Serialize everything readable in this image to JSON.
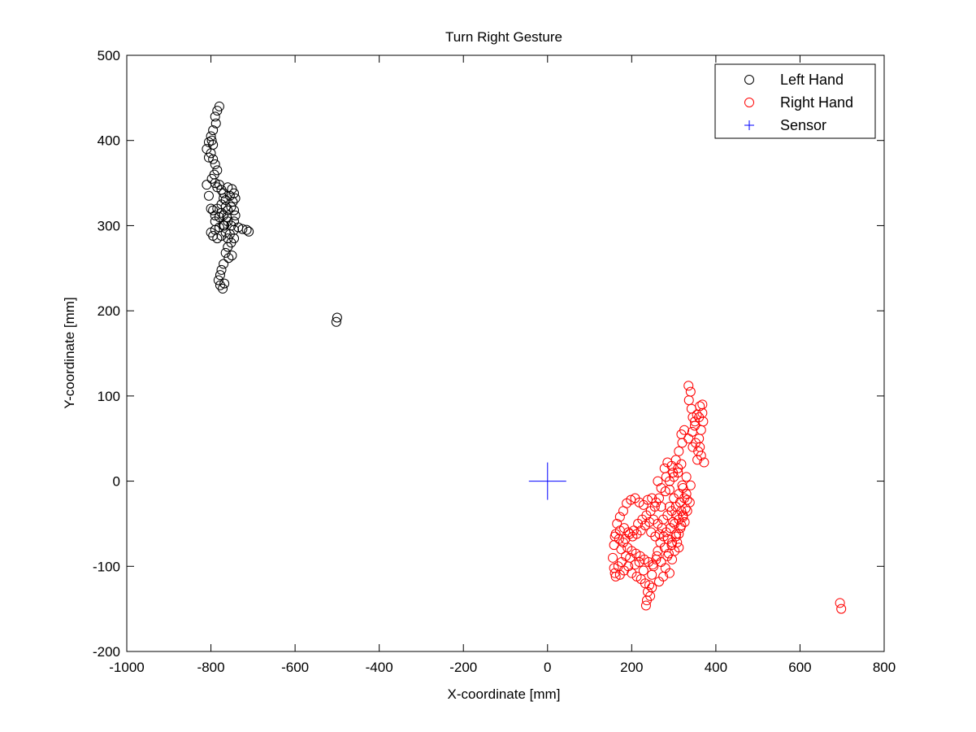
{
  "chart_data": {
    "type": "scatter",
    "title": "Turn Right Gesture",
    "xlabel": "X-coordinate [mm]",
    "ylabel": "Y-coordinate [mm]",
    "xlim": [
      -1000,
      800
    ],
    "ylim": [
      -200,
      500
    ],
    "xticks": [
      -1000,
      -800,
      -600,
      -400,
      -200,
      0,
      200,
      400,
      600,
      800
    ],
    "yticks": [
      -200,
      -100,
      0,
      100,
      200,
      300,
      400,
      500
    ],
    "grid": false,
    "legend_position": "top-right",
    "series": [
      {
        "name": "Left Hand",
        "marker": "circle",
        "color": "#000000",
        "points": [
          [
            -780,
            440
          ],
          [
            -785,
            435
          ],
          [
            -790,
            428
          ],
          [
            -788,
            420
          ],
          [
            -795,
            412
          ],
          [
            -800,
            405
          ],
          [
            -805,
            398
          ],
          [
            -810,
            390
          ],
          [
            -800,
            385
          ],
          [
            -795,
            378
          ],
          [
            -790,
            372
          ],
          [
            -785,
            365
          ],
          [
            -792,
            360
          ],
          [
            -798,
            355
          ],
          [
            -790,
            350
          ],
          [
            -785,
            345
          ],
          [
            -780,
            348
          ],
          [
            -775,
            342
          ],
          [
            -770,
            338
          ],
          [
            -760,
            345
          ],
          [
            -750,
            343
          ],
          [
            -745,
            338
          ],
          [
            -742,
            332
          ],
          [
            -748,
            328
          ],
          [
            -755,
            335
          ],
          [
            -765,
            330
          ],
          [
            -775,
            325
          ],
          [
            -785,
            320
          ],
          [
            -795,
            318
          ],
          [
            -790,
            312
          ],
          [
            -780,
            310
          ],
          [
            -770,
            312
          ],
          [
            -760,
            318
          ],
          [
            -752,
            322
          ],
          [
            -745,
            318
          ],
          [
            -742,
            312
          ],
          [
            -745,
            305
          ],
          [
            -752,
            300
          ],
          [
            -760,
            305
          ],
          [
            -770,
            300
          ],
          [
            -780,
            298
          ],
          [
            -790,
            295
          ],
          [
            -800,
            292
          ],
          [
            -795,
            288
          ],
          [
            -785,
            285
          ],
          [
            -775,
            288
          ],
          [
            -765,
            292
          ],
          [
            -755,
            290
          ],
          [
            -745,
            295
          ],
          [
            -735,
            298
          ],
          [
            -725,
            296
          ],
          [
            -715,
            295
          ],
          [
            -710,
            293
          ],
          [
            -745,
            285
          ],
          [
            -752,
            280
          ],
          [
            -760,
            275
          ],
          [
            -765,
            268
          ],
          [
            -758,
            262
          ],
          [
            -750,
            265
          ],
          [
            -770,
            255
          ],
          [
            -775,
            248
          ],
          [
            -778,
            242
          ],
          [
            -782,
            236
          ],
          [
            -778,
            230
          ],
          [
            -772,
            226
          ],
          [
            -768,
            232
          ],
          [
            -790,
            305
          ],
          [
            -800,
            320
          ],
          [
            -805,
            335
          ],
          [
            -810,
            348
          ],
          [
            -770,
            332
          ],
          [
            -765,
            322
          ],
          [
            -762,
            310
          ],
          [
            -775,
            315
          ],
          [
            -768,
            300
          ],
          [
            -760,
            285
          ],
          [
            -798,
            400
          ],
          [
            -805,
            380
          ],
          [
            -795,
            395
          ],
          [
            -500,
            192
          ],
          [
            -502,
            187
          ]
        ]
      },
      {
        "name": "Right Hand",
        "marker": "circle",
        "color": "#ff0000",
        "points": [
          [
            335,
            112
          ],
          [
            340,
            105
          ],
          [
            336,
            95
          ],
          [
            342,
            85
          ],
          [
            345,
            75
          ],
          [
            350,
            65
          ],
          [
            355,
            78
          ],
          [
            362,
            88
          ],
          [
            368,
            80
          ],
          [
            370,
            70
          ],
          [
            365,
            60
          ],
          [
            360,
            50
          ],
          [
            362,
            40
          ],
          [
            365,
            30
          ],
          [
            372,
            22
          ],
          [
            358,
            35
          ],
          [
            345,
            40
          ],
          [
            335,
            50
          ],
          [
            325,
            60
          ],
          [
            318,
            55
          ],
          [
            320,
            45
          ],
          [
            312,
            35
          ],
          [
            305,
            25
          ],
          [
            295,
            18
          ],
          [
            285,
            22
          ],
          [
            278,
            15
          ],
          [
            282,
            5
          ],
          [
            290,
            0
          ],
          [
            300,
            5
          ],
          [
            310,
            10
          ],
          [
            320,
            -5
          ],
          [
            330,
            -15
          ],
          [
            338,
            -25
          ],
          [
            332,
            -35
          ],
          [
            322,
            -40
          ],
          [
            312,
            -45
          ],
          [
            302,
            -50
          ],
          [
            292,
            -55
          ],
          [
            282,
            -60
          ],
          [
            272,
            -55
          ],
          [
            262,
            -50
          ],
          [
            252,
            -45
          ],
          [
            242,
            -48
          ],
          [
            232,
            -52
          ],
          [
            222,
            -58
          ],
          [
            212,
            -62
          ],
          [
            202,
            -65
          ],
          [
            192,
            -60
          ],
          [
            182,
            -55
          ],
          [
            172,
            -58
          ],
          [
            162,
            -62
          ],
          [
            158,
            -75
          ],
          [
            155,
            -90
          ],
          [
            158,
            -102
          ],
          [
            162,
            -112
          ],
          [
            172,
            -110
          ],
          [
            182,
            -105
          ],
          [
            192,
            -100
          ],
          [
            200,
            -108
          ],
          [
            212,
            -112
          ],
          [
            222,
            -115
          ],
          [
            232,
            -120
          ],
          [
            238,
            -130
          ],
          [
            236,
            -140
          ],
          [
            234,
            -146
          ],
          [
            242,
            -122
          ],
          [
            248,
            -110
          ],
          [
            252,
            -100
          ],
          [
            258,
            -92
          ],
          [
            262,
            -82
          ],
          [
            268,
            -72
          ],
          [
            278,
            -78
          ],
          [
            288,
            -85
          ],
          [
            296,
            -92
          ],
          [
            302,
            -82
          ],
          [
            308,
            -72
          ],
          [
            312,
            -62
          ],
          [
            318,
            -52
          ],
          [
            322,
            -42
          ],
          [
            328,
            -32
          ],
          [
            332,
            -22
          ],
          [
            325,
            -20
          ],
          [
            315,
            -25
          ],
          [
            305,
            -30
          ],
          [
            295,
            -35
          ],
          [
            285,
            -40
          ],
          [
            275,
            -45
          ],
          [
            270,
            -30
          ],
          [
            265,
            -20
          ],
          [
            258,
            -25
          ],
          [
            248,
            -20
          ],
          [
            238,
            -22
          ],
          [
            228,
            -28
          ],
          [
            218,
            -25
          ],
          [
            208,
            -20
          ],
          [
            198,
            -22
          ],
          [
            188,
            -26
          ],
          [
            180,
            -35
          ],
          [
            172,
            -42
          ],
          [
            165,
            -50
          ],
          [
            160,
            -65
          ],
          [
            170,
            -68
          ],
          [
            180,
            -72
          ],
          [
            190,
            -78
          ],
          [
            200,
            -82
          ],
          [
            210,
            -85
          ],
          [
            220,
            -88
          ],
          [
            230,
            -92
          ],
          [
            240,
            -95
          ],
          [
            250,
            -98
          ],
          [
            260,
            -88
          ],
          [
            270,
            -95
          ],
          [
            280,
            -102
          ],
          [
            290,
            -108
          ],
          [
            246,
            -60
          ],
          [
            256,
            -65
          ],
          [
            266,
            -62
          ],
          [
            276,
            -65
          ],
          [
            286,
            -68
          ],
          [
            296,
            -72
          ],
          [
            306,
            -62
          ],
          [
            316,
            -55
          ],
          [
            326,
            -48
          ],
          [
            318,
            -35
          ],
          [
            308,
            -40
          ],
          [
            298,
            -48
          ],
          [
            290,
            -30
          ],
          [
            300,
            -20
          ],
          [
            312,
            -15
          ],
          [
            322,
            -8
          ],
          [
            318,
            20
          ],
          [
            310,
            15
          ],
          [
            298,
            10
          ],
          [
            330,
            5
          ],
          [
            340,
            -5
          ],
          [
            350,
            70
          ],
          [
            360,
            75
          ],
          [
            368,
            90
          ],
          [
            344,
            58
          ],
          [
            352,
            45
          ],
          [
            356,
            25
          ],
          [
            290,
            -10
          ],
          [
            280,
            -12
          ],
          [
            270,
            -8
          ],
          [
            262,
            0
          ],
          [
            305,
            -65
          ],
          [
            312,
            -78
          ],
          [
            295,
            -75
          ],
          [
            285,
            -88
          ],
          [
            275,
            -112
          ],
          [
            265,
            -118
          ],
          [
            248,
            -125
          ],
          [
            244,
            -135
          ],
          [
            228,
            -105
          ],
          [
            218,
            -95
          ],
          [
            208,
            -98
          ],
          [
            196,
            -90
          ],
          [
            186,
            -88
          ],
          [
            176,
            -95
          ],
          [
            168,
            -100
          ],
          [
            160,
            -108
          ],
          [
            175,
            -80
          ],
          [
            185,
            -68
          ],
          [
            195,
            -62
          ],
          [
            205,
            -58
          ],
          [
            215,
            -50
          ],
          [
            225,
            -45
          ],
          [
            235,
            -40
          ],
          [
            245,
            -35
          ],
          [
            255,
            -30
          ],
          [
            695,
            -143
          ],
          [
            698,
            -150
          ]
        ]
      },
      {
        "name": "Sensor",
        "marker": "plus",
        "color": "#0000ff",
        "points": [
          [
            0,
            0
          ]
        ]
      }
    ]
  }
}
